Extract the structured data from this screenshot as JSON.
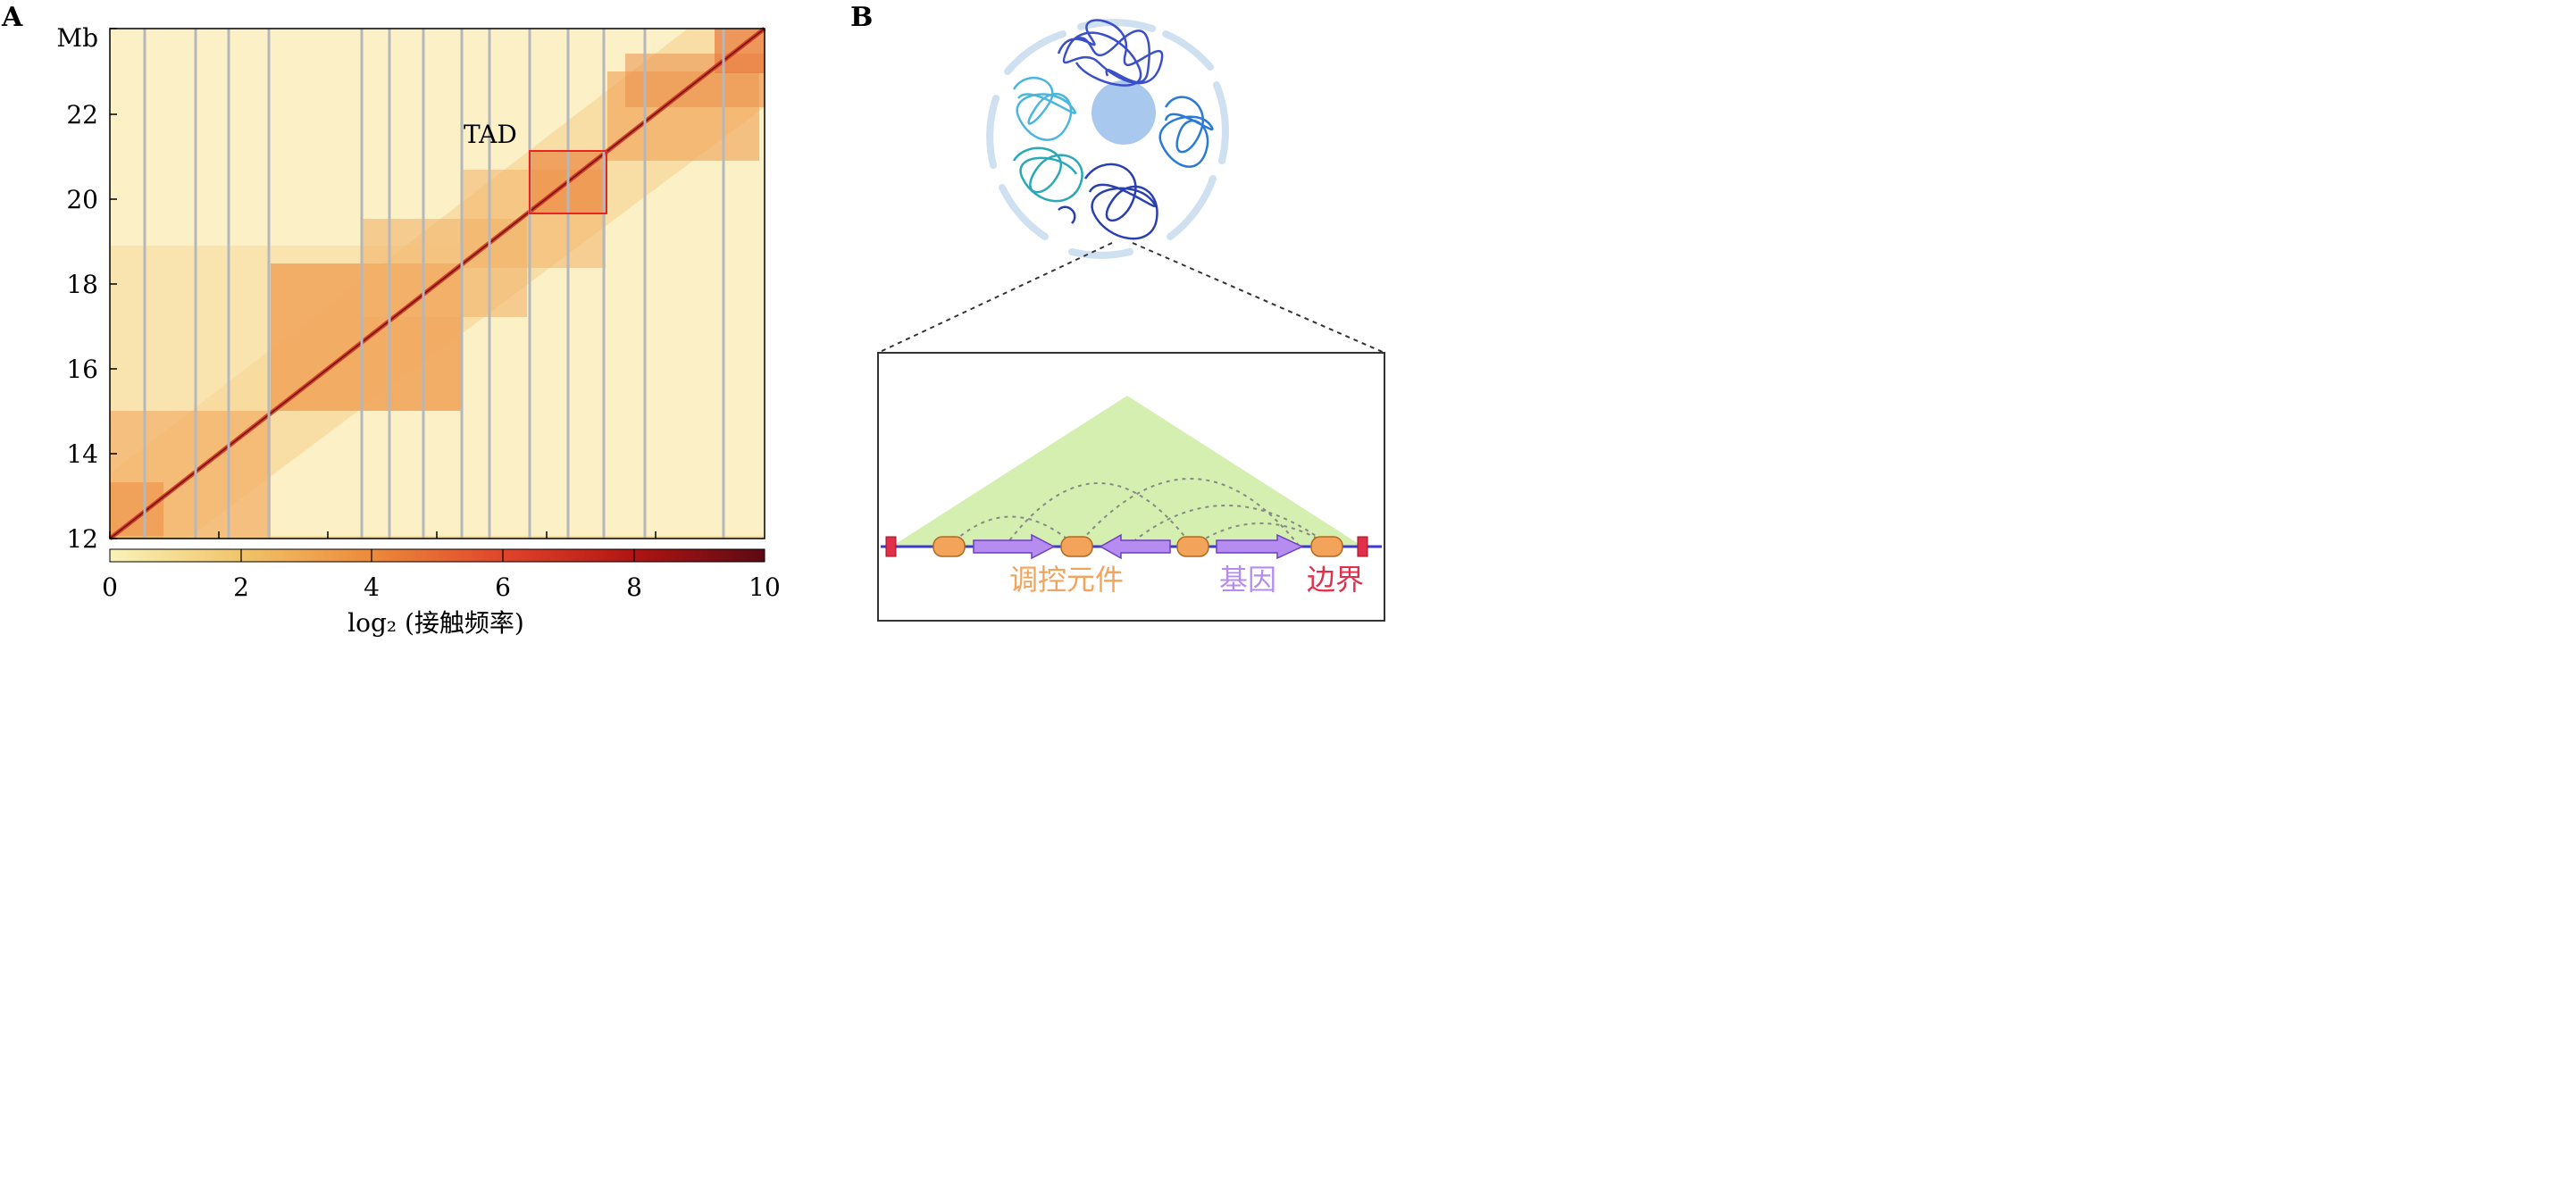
{
  "panel_a": {
    "letter": "A",
    "y_unit": "Mb",
    "y_ticks": [
      "12",
      "14",
      "16",
      "18",
      "20",
      "22"
    ],
    "y_range": [
      12,
      24
    ],
    "tad_label": "TAD",
    "colorbar": {
      "ticks": [
        "0",
        "2",
        "4",
        "6",
        "8",
        "10"
      ],
      "range": [
        0,
        10
      ],
      "label": "log₂ (接触频率)",
      "colors": [
        "#f9f3b8",
        "#f1c46a",
        "#ec8a3a",
        "#e0452a",
        "#b01512",
        "#5c0a14"
      ]
    }
  },
  "panel_b": {
    "letter": "B",
    "legend": {
      "regulatory": "调控元件",
      "gene": "基因",
      "boundary": "边界"
    },
    "colors": {
      "regulatory": "#f4a35a",
      "gene": "#b68cf0",
      "boundary": "#e0304a",
      "tad_triangle": "#d4efb0",
      "chromatin_line": "#3b3bd0",
      "nucleolus": "#a9c8ee"
    }
  }
}
